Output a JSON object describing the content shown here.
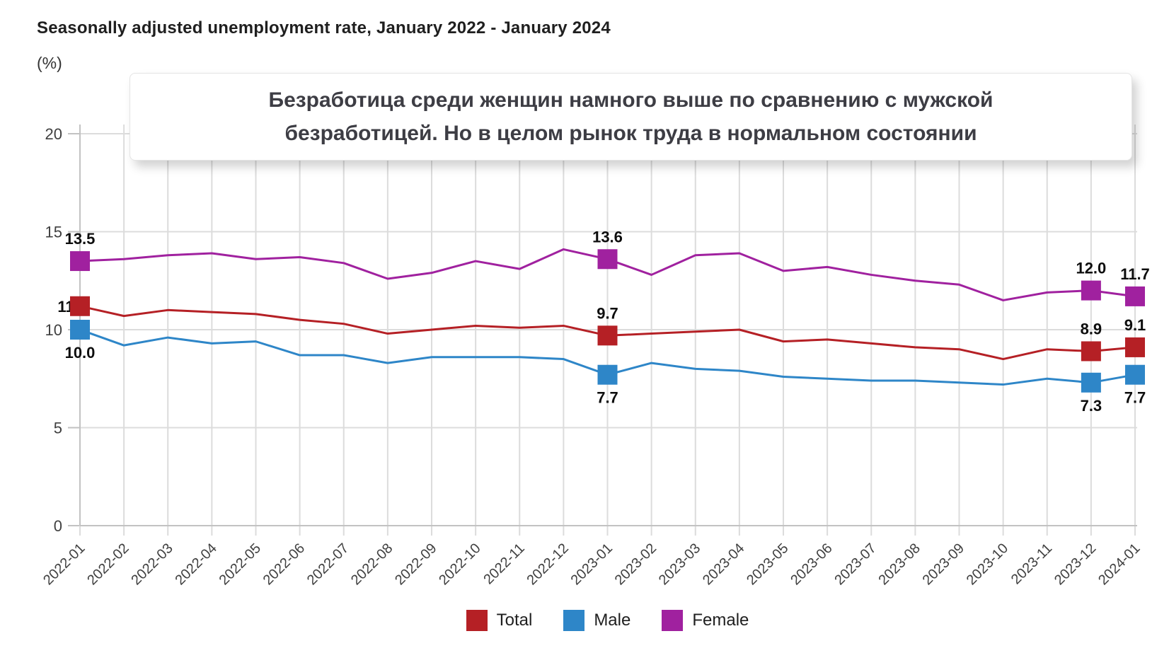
{
  "header": {
    "title": "Seasonally adjusted unemployment rate, January 2022 - January 2024",
    "unit_label": "(%)"
  },
  "annotation": {
    "line1": "Безработица среди женщин намного выше по сравнению с мужской",
    "line2": "безработицей. Но в целом рынок труда в нормальном состоянии"
  },
  "axis": {
    "yticks": [
      0,
      5,
      10,
      15,
      20
    ],
    "ylim": [
      0,
      20
    ]
  },
  "chart_data": {
    "type": "line",
    "title": "Seasonally adjusted unemployment rate, January 2022 - January 2024",
    "xlabel": "",
    "ylabel": "(%)",
    "ylim": [
      0,
      20
    ],
    "yticks": [
      0,
      5,
      10,
      15,
      20
    ],
    "grid": true,
    "legend_position": "bottom",
    "categories": [
      "2022-01",
      "2022-02",
      "2022-03",
      "2022-04",
      "2022-05",
      "2022-06",
      "2022-07",
      "2022-08",
      "2022-09",
      "2022-10",
      "2022-11",
      "2022-12",
      "2023-01",
      "2023-02",
      "2023-03",
      "2023-04",
      "2023-05",
      "2023-06",
      "2023-07",
      "2023-08",
      "2023-09",
      "2023-10",
      "2023-11",
      "2023-12",
      "2024-01"
    ],
    "series": [
      {
        "name": "Total",
        "color": "#b52025",
        "values": [
          11.2,
          10.7,
          11.0,
          10.9,
          10.8,
          10.5,
          10.3,
          9.8,
          10.0,
          10.2,
          10.1,
          10.2,
          9.7,
          9.8,
          9.9,
          10.0,
          9.4,
          9.5,
          9.3,
          9.1,
          9.0,
          8.5,
          9.0,
          8.9,
          9.1
        ]
      },
      {
        "name": "Male",
        "color": "#2e86c8",
        "values": [
          10.0,
          9.2,
          9.6,
          9.3,
          9.4,
          8.7,
          8.7,
          8.3,
          8.6,
          8.6,
          8.6,
          8.5,
          7.7,
          8.3,
          8.0,
          7.9,
          7.6,
          7.5,
          7.4,
          7.4,
          7.3,
          7.2,
          7.5,
          7.3,
          7.7
        ]
      },
      {
        "name": "Female",
        "color": "#a0219f",
        "values": [
          13.5,
          13.6,
          13.8,
          13.9,
          13.6,
          13.7,
          13.4,
          12.6,
          12.9,
          13.5,
          13.1,
          14.1,
          13.6,
          12.8,
          13.8,
          13.9,
          13.0,
          13.2,
          12.8,
          12.5,
          12.3,
          11.5,
          11.9,
          12.0,
          11.7
        ]
      }
    ],
    "point_labels": [
      {
        "series": "Female",
        "category": "2022-01",
        "value": 13.5,
        "position": "above"
      },
      {
        "series": "Total",
        "category": "2022-01",
        "value": 11.2,
        "position": "left"
      },
      {
        "series": "Male",
        "category": "2022-01",
        "value": 10.0,
        "position": "below"
      },
      {
        "series": "Female",
        "category": "2023-01",
        "value": 13.6,
        "position": "above"
      },
      {
        "series": "Total",
        "category": "2023-01",
        "value": 9.7,
        "position": "above"
      },
      {
        "series": "Male",
        "category": "2023-01",
        "value": 7.7,
        "position": "below"
      },
      {
        "series": "Female",
        "category": "2023-12",
        "value": 12.0,
        "position": "above"
      },
      {
        "series": "Total",
        "category": "2023-12",
        "value": 8.9,
        "position": "above"
      },
      {
        "series": "Male",
        "category": "2023-12",
        "value": 7.3,
        "position": "below"
      },
      {
        "series": "Female",
        "category": "2024-01",
        "value": 11.7,
        "position": "above"
      },
      {
        "series": "Total",
        "category": "2024-01",
        "value": 9.1,
        "position": "above"
      },
      {
        "series": "Male",
        "category": "2024-01",
        "value": 7.7,
        "position": "below"
      }
    ],
    "colors": {
      "grid": "#dcdcdc",
      "axis": "#c2c2c2",
      "tick_text": "#404040",
      "data_label_text": "#0d0d0d"
    }
  }
}
